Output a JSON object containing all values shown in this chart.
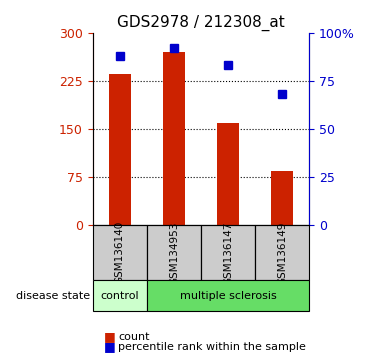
{
  "title": "GDS2978 / 212308_at",
  "samples": [
    "GSM136140",
    "GSM134953",
    "GSM136147",
    "GSM136149"
  ],
  "bar_values": [
    235,
    270,
    160,
    85
  ],
  "percentile_values": [
    88,
    92,
    83,
    68
  ],
  "bar_color": "#cc2200",
  "point_color": "#0000cc",
  "ylim_left": [
    0,
    300
  ],
  "ylim_right": [
    0,
    100
  ],
  "yticks_left": [
    0,
    75,
    150,
    225,
    300
  ],
  "yticks_right": [
    0,
    25,
    50,
    75,
    100
  ],
  "ytick_labels_right": [
    "0",
    "25",
    "50",
    "75",
    "100%"
  ],
  "disease_groups": {
    "control": [
      "GSM136140"
    ],
    "multiple sclerosis": [
      "GSM134953",
      "GSM136147",
      "GSM136149"
    ]
  },
  "control_color": "#ccffcc",
  "ms_color": "#66dd66",
  "sample_box_color": "#cccccc",
  "legend_count_color": "#cc2200",
  "legend_pct_color": "#0000cc",
  "background_color": "#ffffff"
}
